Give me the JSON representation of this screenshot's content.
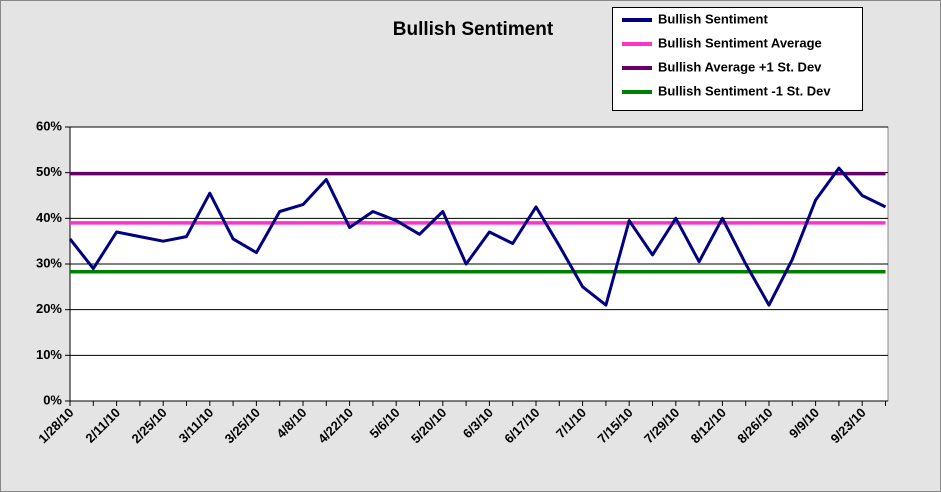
{
  "chart_data": {
    "type": "line",
    "title": "Bullish Sentiment",
    "categories": [
      "1/28/10",
      null,
      "2/11/10",
      null,
      "2/25/10",
      null,
      "3/11/10",
      null,
      "3/25/10",
      null,
      "4/8/10",
      null,
      "4/22/10",
      null,
      "5/6/10",
      null,
      "5/20/10",
      null,
      "6/3/10",
      null,
      "6/17/10",
      null,
      "7/1/10",
      null,
      "7/15/10",
      null,
      "7/29/10",
      null,
      "8/12/10",
      null,
      "8/26/10",
      null,
      "9/9/10",
      null,
      "9/23/10",
      null
    ],
    "series": [
      {
        "name": "Bullish Sentiment",
        "color": "#000080",
        "values": [
          35.5,
          29,
          37,
          36,
          35,
          36,
          45.5,
          35.5,
          32.5,
          41.5,
          43,
          48.5,
          38,
          41.5,
          39.5,
          36.5,
          41.5,
          30,
          37,
          34.5,
          42.5,
          34,
          25,
          21,
          39.5,
          32,
          40,
          30.5,
          40,
          30,
          21,
          31,
          44,
          51,
          45,
          42.5
        ]
      },
      {
        "name": "Bullish Sentiment Average",
        "color": "#ff33cc",
        "values": [
          39,
          39,
          39,
          39,
          39,
          39,
          39,
          39,
          39,
          39,
          39,
          39,
          39,
          39,
          39,
          39,
          39,
          39,
          39,
          39,
          39,
          39,
          39,
          39,
          39,
          39,
          39,
          39,
          39,
          39,
          39,
          39,
          39,
          39,
          39,
          39
        ]
      },
      {
        "name": "Bullish Average +1 St. Dev",
        "color": "#660066",
        "values": [
          49.8,
          49.8,
          49.8,
          49.8,
          49.8,
          49.8,
          49.8,
          49.8,
          49.8,
          49.8,
          49.8,
          49.8,
          49.8,
          49.8,
          49.8,
          49.8,
          49.8,
          49.8,
          49.8,
          49.8,
          49.8,
          49.8,
          49.8,
          49.8,
          49.8,
          49.8,
          49.8,
          49.8,
          49.8,
          49.8,
          49.8,
          49.8,
          49.8,
          49.8,
          49.8,
          49.8
        ]
      },
      {
        "name": "Bullish Sentiment -1 St. Dev",
        "color": "#008000",
        "values": [
          28.3,
          28.3,
          28.3,
          28.3,
          28.3,
          28.3,
          28.3,
          28.3,
          28.3,
          28.3,
          28.3,
          28.3,
          28.3,
          28.3,
          28.3,
          28.3,
          28.3,
          28.3,
          28.3,
          28.3,
          28.3,
          28.3,
          28.3,
          28.3,
          28.3,
          28.3,
          28.3,
          28.3,
          28.3,
          28.3,
          28.3,
          28.3,
          28.3,
          28.3,
          28.3,
          28.3
        ]
      }
    ],
    "ylim": [
      0,
      60
    ],
    "yticks": [
      {
        "value": 0,
        "label": "0%"
      },
      {
        "value": 10,
        "label": "10%"
      },
      {
        "value": 20,
        "label": "20%"
      },
      {
        "value": 30,
        "label": "30%"
      },
      {
        "value": 40,
        "label": "40%"
      },
      {
        "value": 50,
        "label": "50%"
      },
      {
        "value": 60,
        "label": "60%"
      }
    ],
    "grid": true,
    "legend": "top-right"
  }
}
